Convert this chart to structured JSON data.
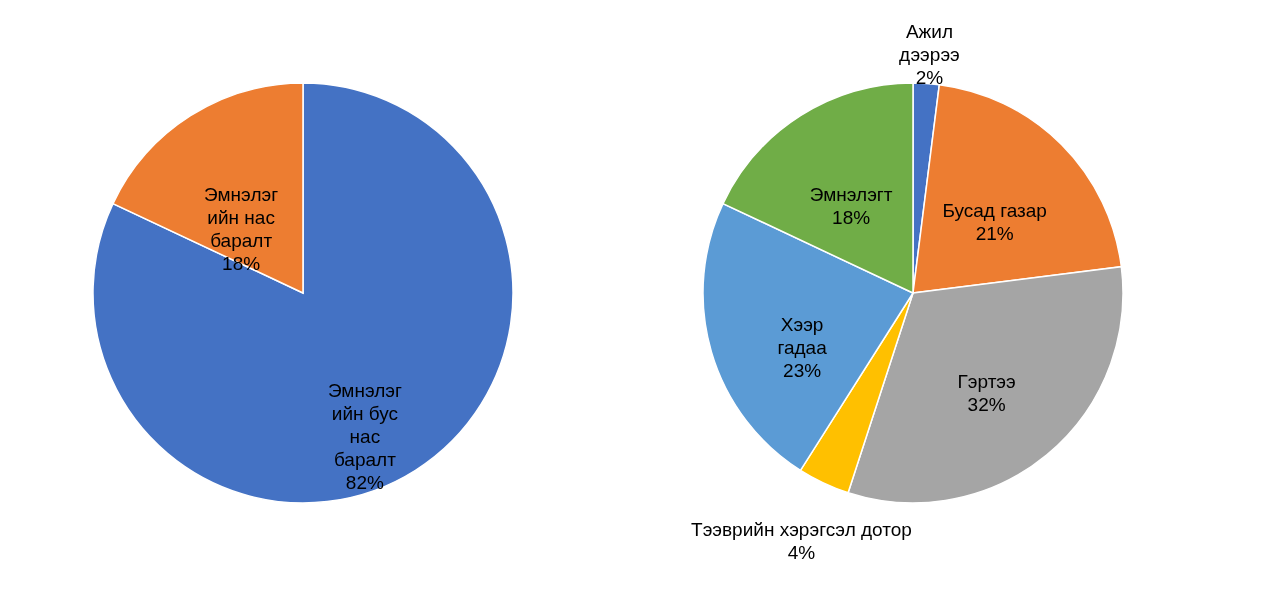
{
  "chart_data": [
    {
      "type": "pie",
      "categories": [
        "Эмнэлэг\nийн бус\nнас\nбаралт",
        "Эмнэлэг\nийн нас\nбаралт"
      ],
      "values": [
        82,
        18
      ],
      "value_labels": [
        "82%",
        "18%"
      ],
      "colors": [
        "#4472c4",
        "#ed7d31"
      ],
      "legend": false
    },
    {
      "type": "pie",
      "categories": [
        "Ажил\nдээрээ",
        "Бусад газар",
        "Гэртээ",
        "Тээврийн хэрэгсэл дотор",
        "Хээр\nгадаа",
        "Эмнэлэгт"
      ],
      "values": [
        2,
        21,
        32,
        4,
        23,
        18
      ],
      "value_labels": [
        "2%",
        "21%",
        "32%",
        "4%",
        "23%",
        "18%"
      ],
      "colors": [
        "#4472c4",
        "#ed7d31",
        "#a5a5a5",
        "#ffc000",
        "#5b9bd5",
        "#70ad47"
      ],
      "legend": false
    }
  ]
}
